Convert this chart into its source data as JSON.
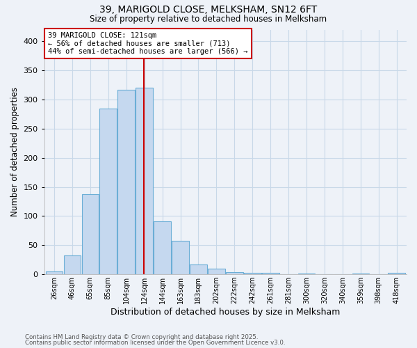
{
  "title1": "39, MARIGOLD CLOSE, MELKSHAM, SN12 6FT",
  "title2": "Size of property relative to detached houses in Melksham",
  "xlabel": "Distribution of detached houses by size in Melksham",
  "ylabel": "Number of detached properties",
  "bin_labels": [
    "26sqm",
    "46sqm",
    "65sqm",
    "85sqm",
    "104sqm",
    "124sqm",
    "144sqm",
    "163sqm",
    "183sqm",
    "202sqm",
    "222sqm",
    "242sqm",
    "261sqm",
    "281sqm",
    "300sqm",
    "320sqm",
    "340sqm",
    "359sqm",
    "398sqm",
    "418sqm"
  ],
  "n_bins": 20,
  "bar_values": [
    5,
    33,
    138,
    284,
    317,
    320,
    91,
    57,
    17,
    10,
    4,
    3,
    2,
    0,
    1,
    0,
    0,
    1,
    0,
    2
  ],
  "bar_color": "#c5d8ef",
  "bar_edge_color": "#6baed6",
  "property_size_bin": 5,
  "vline_color": "#cc0000",
  "annotation_text": "39 MARIGOLD CLOSE: 121sqm\n← 56% of detached houses are smaller (713)\n44% of semi-detached houses are larger (566) →",
  "annotation_box_color": "white",
  "annotation_box_edge_color": "#cc0000",
  "ylim_max": 420,
  "grid_color": "#c8d8e8",
  "background_color": "#eef2f8",
  "footnote1": "Contains HM Land Registry data © Crown copyright and database right 2025.",
  "footnote2": "Contains public sector information licensed under the Open Government Licence v3.0."
}
